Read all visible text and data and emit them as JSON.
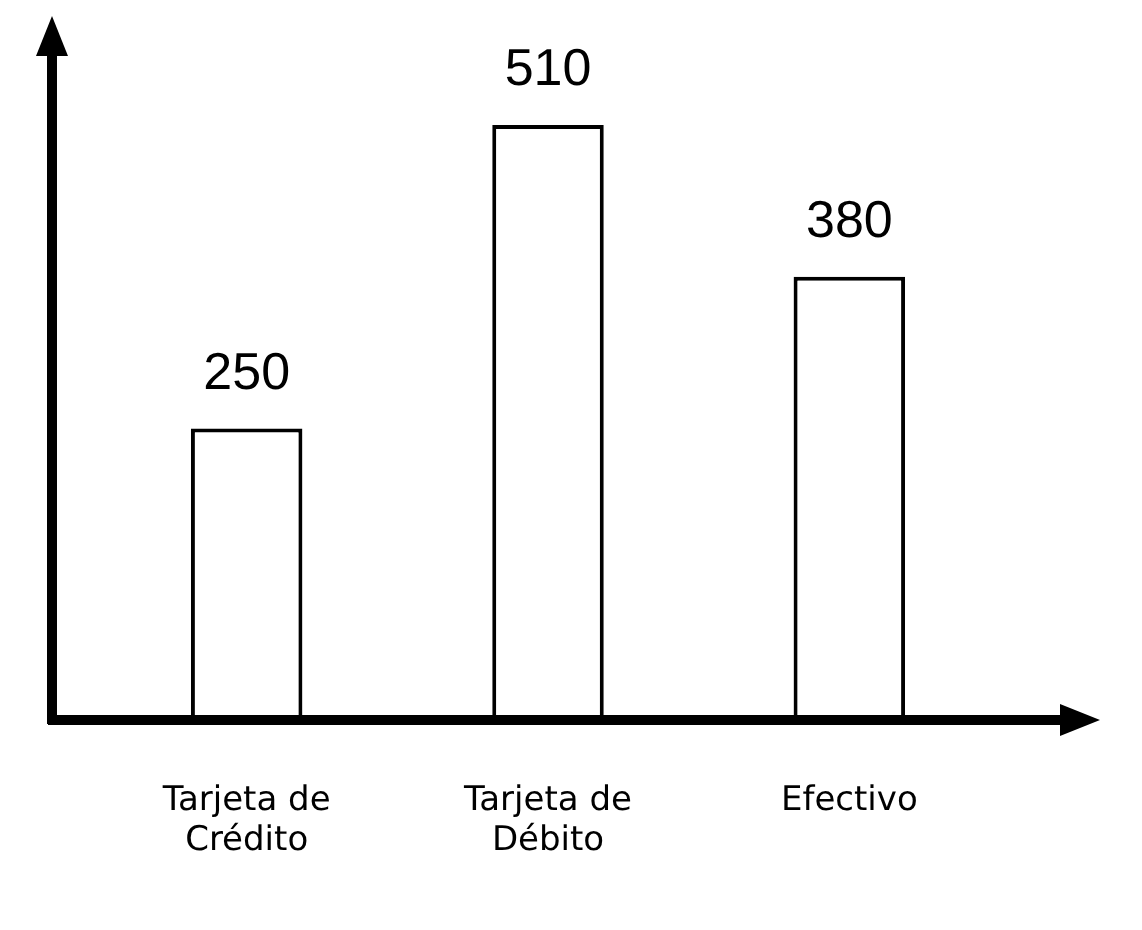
{
  "chart_data": {
    "type": "bar",
    "categories": [
      "Tarjeta de Crédito",
      "Tarjeta de Débito",
      "Efectivo"
    ],
    "values": [
      250,
      510,
      380
    ],
    "color": "#ffffff",
    "data_labels": true,
    "grid": false,
    "legend": false,
    "tick_labels": "x"
  }
}
